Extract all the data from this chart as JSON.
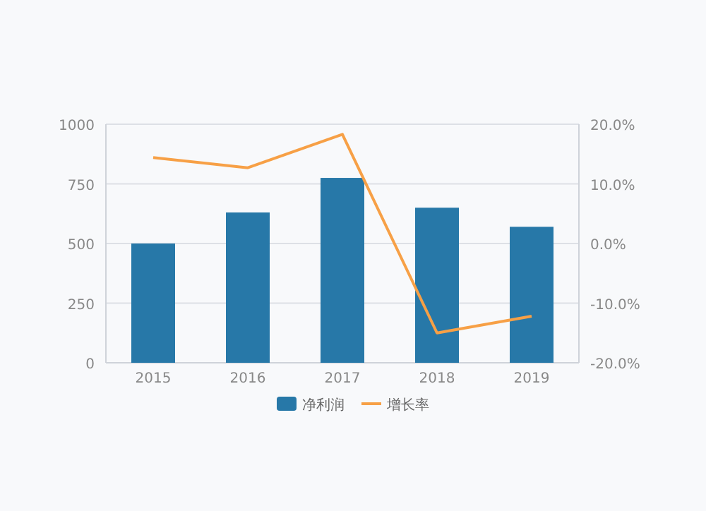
{
  "chart_data": {
    "type": "bar",
    "categories": [
      "2015",
      "2016",
      "2017",
      "2018",
      "2019"
    ],
    "series": [
      {
        "name": "净利润",
        "color": "#2778a8",
        "values": [
          500,
          630,
          775,
          650,
          570
        ]
      },
      {
        "name": "增长率",
        "type": "line",
        "axis": "y2",
        "color": "#f7a046",
        "values": [
          14.4,
          12.7,
          18.3,
          -15.0,
          -12.2
        ]
      }
    ],
    "ylim": [
      0,
      1000
    ],
    "yticks": [
      0,
      250,
      500,
      750,
      1000
    ],
    "y2lim": [
      -20,
      20
    ],
    "y2ticks": [
      {
        "value": -20,
        "label": "-20.0%"
      },
      {
        "value": -10,
        "label": "-10.0%"
      },
      {
        "value": 0,
        "label": "0.0%"
      },
      {
        "value": 10,
        "label": "10.0%"
      },
      {
        "value": 20,
        "label": "20.0%"
      }
    ],
    "grid": "y",
    "legend": "bottom",
    "marker": "none",
    "line_style": "solid"
  }
}
